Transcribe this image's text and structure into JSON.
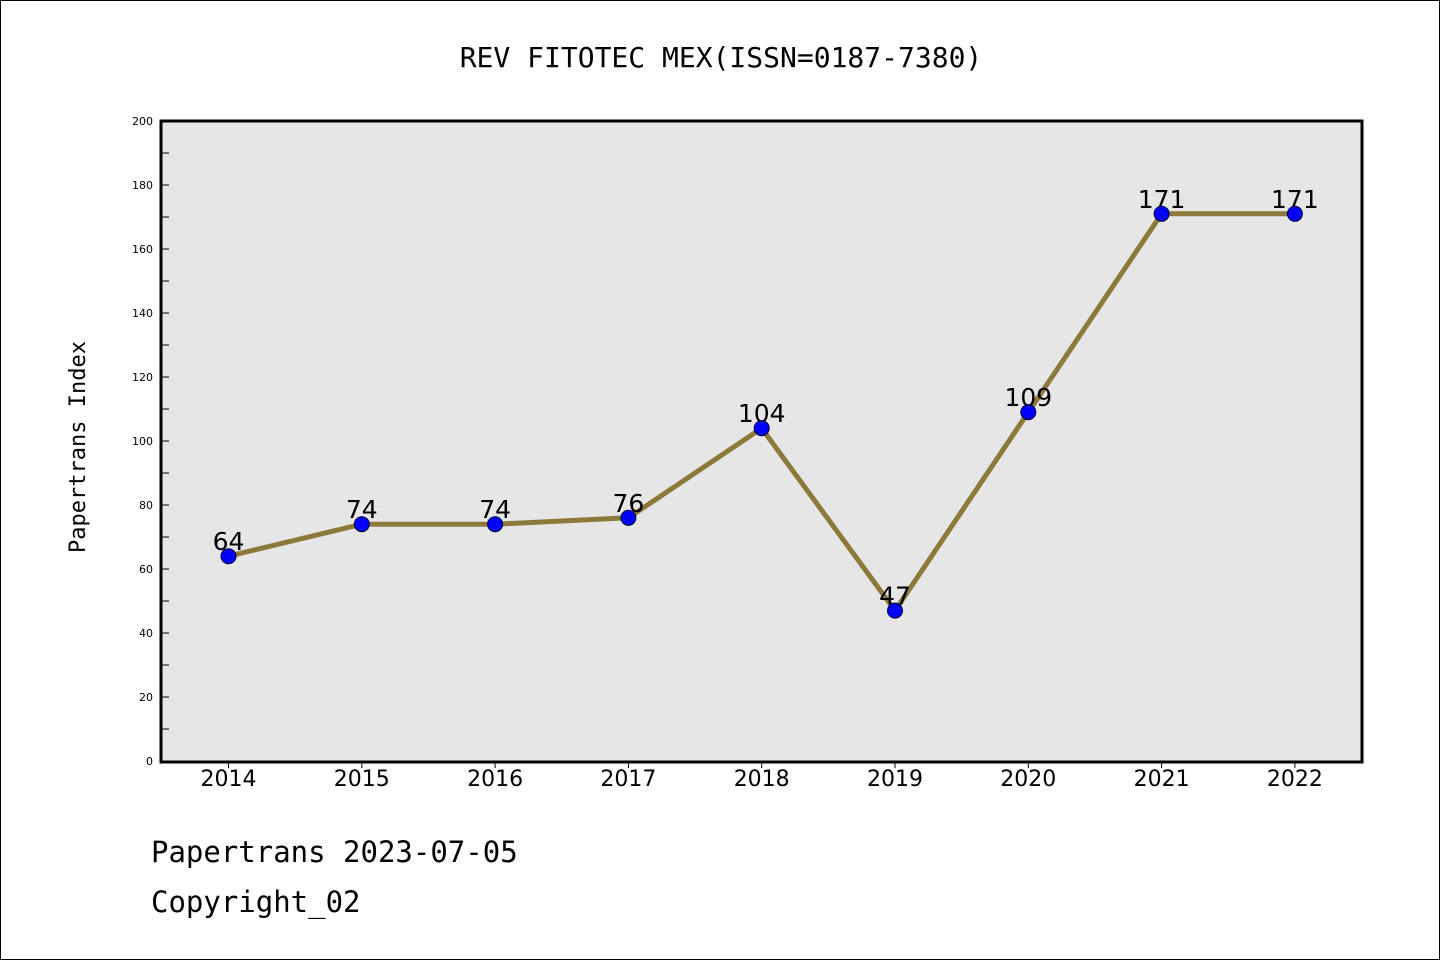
{
  "chart_data": {
    "type": "line",
    "title": "REV FITOTEC MEX(ISSN=0187-7380)",
    "xlabel": "",
    "ylabel": "Papertrans Index",
    "categories": [
      "2014",
      "2015",
      "2016",
      "2017",
      "2018",
      "2019",
      "2020",
      "2021",
      "2022"
    ],
    "values": [
      64,
      74,
      74,
      76,
      104,
      47,
      109,
      171,
      171
    ],
    "data_labels": [
      "64",
      "74",
      "74",
      "76",
      "104",
      "47",
      "109",
      "171",
      "171"
    ],
    "ylim": [
      0,
      200
    ],
    "y_ticks": [
      0,
      20,
      40,
      60,
      80,
      100,
      120,
      140,
      160,
      180,
      200
    ],
    "y_tick_labels": [
      "0",
      "20",
      "40",
      "60",
      "80",
      "100",
      "120",
      "140",
      "160",
      "180",
      "200"
    ],
    "grid": false,
    "legend": "none",
    "colors": {
      "line": "#8c7a3a",
      "marker": "#0000ff",
      "plot_background": "#e6e6e6"
    }
  },
  "footer": {
    "date_line": "Papertrans 2023-07-05",
    "copyright": "Copyright_02"
  }
}
